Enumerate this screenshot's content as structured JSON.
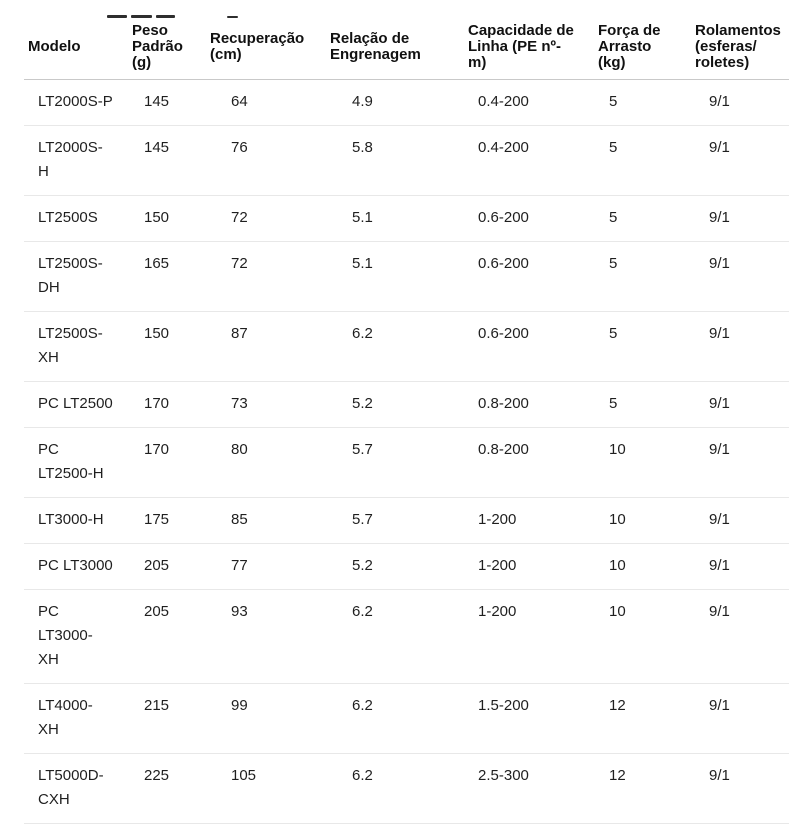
{
  "colors": {
    "text": "#1f1f1f",
    "header_text": "#111111",
    "header_border": "#c9c9c9",
    "row_border": "#e8e8e8",
    "background": "#ffffff"
  },
  "table": {
    "columns": [
      {
        "key": "modelo",
        "label": "Modelo"
      },
      {
        "key": "peso-padrao",
        "label": "Peso\nPadrão\n(g)"
      },
      {
        "key": "recuperacao",
        "label": "Recuperação\n(cm)"
      },
      {
        "key": "relacao-engrenagem",
        "label": "Relação de\nEngrenagem"
      },
      {
        "key": "capacidade-linha",
        "label": "Capacidade de\nLinha (PE nº-\nm)"
      },
      {
        "key": "forca-arrasto",
        "label": "Força de\nArrasto\n(kg)"
      },
      {
        "key": "rolamentos",
        "label": "Rolamentos\n(esferas/\nroletes)"
      }
    ],
    "rows": [
      [
        "LT2000S-P",
        "145",
        "64",
        "4.9",
        "0.4-200",
        "5",
        "9/1"
      ],
      [
        "LT2000S-\nH",
        "145",
        "76",
        "5.8",
        "0.4-200",
        "5",
        "9/1"
      ],
      [
        "LT2500S",
        "150",
        "72",
        "5.1",
        "0.6-200",
        "5",
        "9/1"
      ],
      [
        "LT2500S-\nDH",
        "165",
        "72",
        "5.1",
        "0.6-200",
        "5",
        "9/1"
      ],
      [
        "LT2500S-\nXH",
        "150",
        "87",
        "6.2",
        "0.6-200",
        "5",
        "9/1"
      ],
      [
        "PC LT2500",
        "170",
        "73",
        "5.2",
        "0.8-200",
        "5",
        "9/1"
      ],
      [
        "PC\nLT2500-H",
        "170",
        "80",
        "5.7",
        "0.8-200",
        "10",
        "9/1"
      ],
      [
        "LT3000-H",
        "175",
        "85",
        "5.7",
        "1-200",
        "10",
        "9/1"
      ],
      [
        "PC LT3000",
        "205",
        "77",
        "5.2",
        "1-200",
        "10",
        "9/1"
      ],
      [
        "PC\nLT3000-\nXH",
        "205",
        "93",
        "6.2",
        "1-200",
        "10",
        "9/1"
      ],
      [
        "LT4000-\nXH",
        "215",
        "99",
        "6.2",
        "1.5-200",
        "12",
        "9/1"
      ],
      [
        "LT5000D-\nCXH",
        "225",
        "105",
        "6.2",
        "2.5-300",
        "12",
        "9/1"
      ]
    ]
  }
}
